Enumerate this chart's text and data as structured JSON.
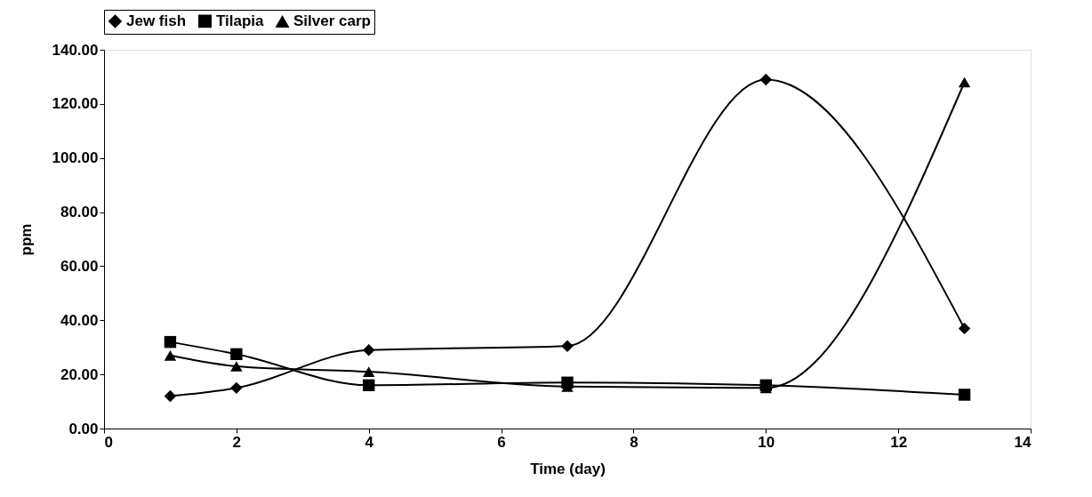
{
  "chart_data": {
    "type": "line",
    "xlabel": "Time (day)",
    "ylabel": "ppm",
    "x": [
      1,
      2,
      4,
      7,
      10,
      13
    ],
    "series": [
      {
        "name": "Jew fish",
        "color": "#000000",
        "marker": "diamond",
        "values": [
          12,
          15,
          29,
          30.5,
          129,
          37
        ]
      },
      {
        "name": "Tilapia",
        "color": "#000000",
        "marker": "square",
        "values": [
          32,
          27.5,
          16,
          17,
          16,
          12.5
        ]
      },
      {
        "name": "Silver carp",
        "color": "#000000",
        "marker": "triangle",
        "values": [
          27,
          23,
          21,
          15.5,
          15,
          128
        ]
      }
    ],
    "xlim": [
      0,
      14
    ],
    "xticks": [
      0,
      2,
      4,
      6,
      8,
      10,
      12,
      14
    ],
    "ylim": [
      0,
      140
    ],
    "yticks": [
      {
        "value": 0,
        "label": "0.00"
      },
      {
        "value": 20,
        "label": "20.00"
      },
      {
        "value": 40,
        "label": "40.00"
      },
      {
        "value": 60,
        "label": "60.00"
      },
      {
        "value": 80,
        "label": "80.00"
      },
      {
        "value": 100,
        "label": "100.00"
      },
      {
        "value": 120,
        "label": "120.00"
      },
      {
        "value": 140,
        "label": "140.00"
      }
    ],
    "grid": false,
    "legend": "top",
    "line_style": "solid"
  }
}
